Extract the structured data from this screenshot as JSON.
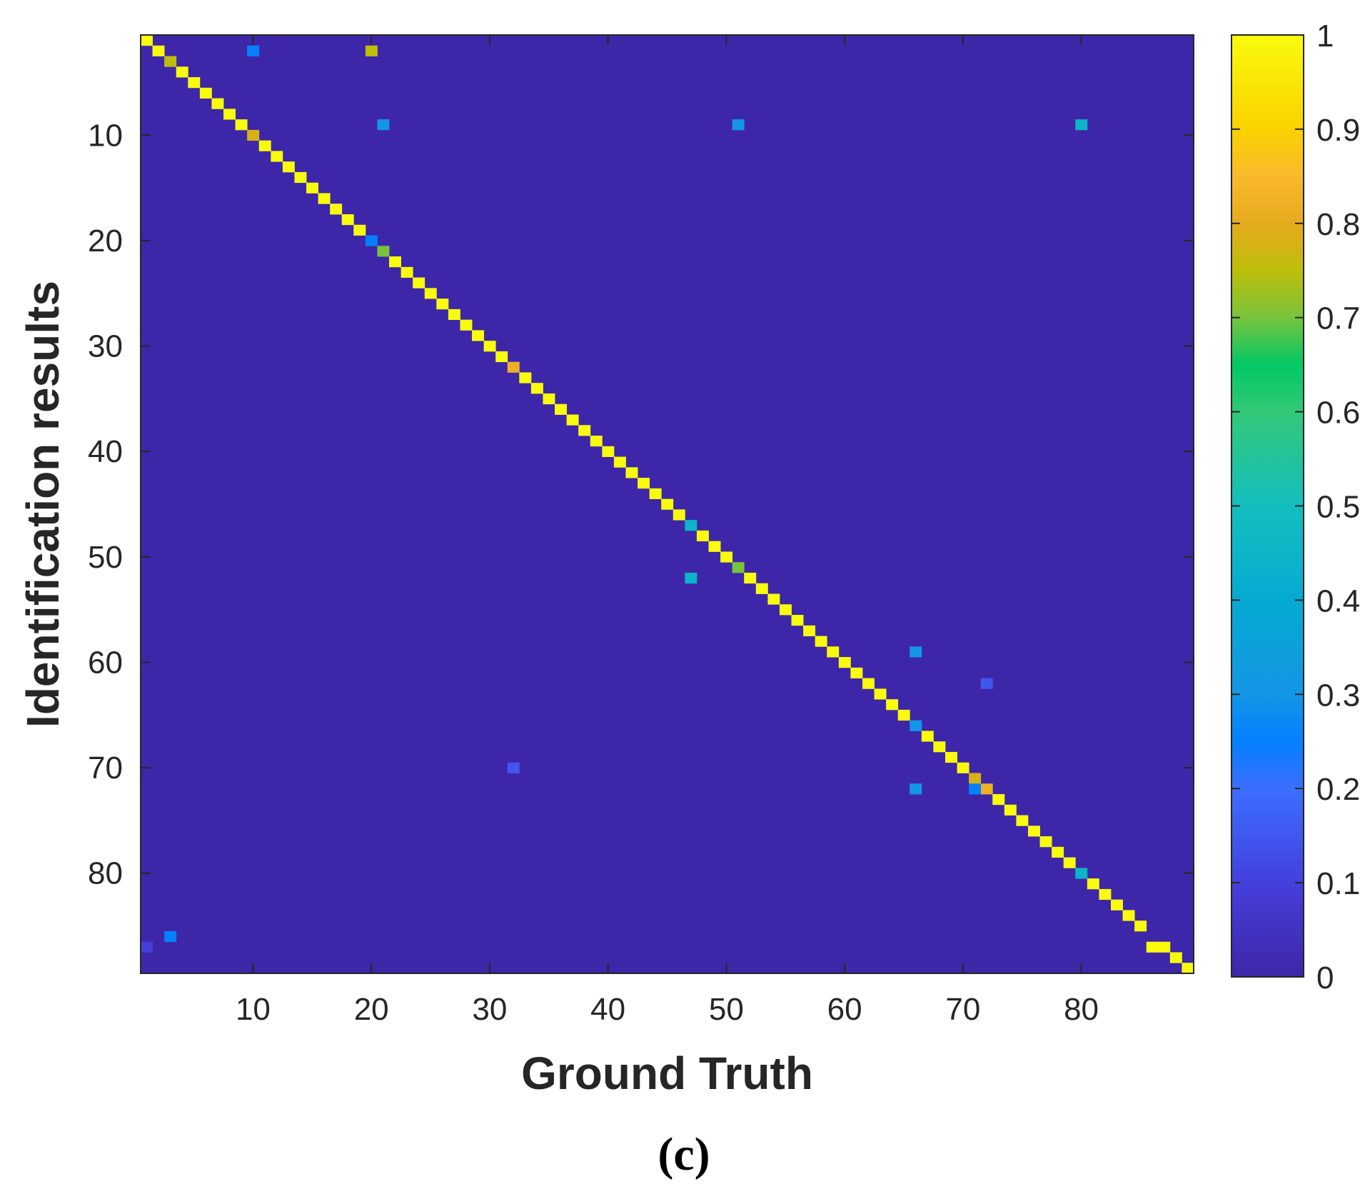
{
  "chart_data": {
    "type": "heatmap",
    "title": "",
    "xlabel": "Ground Truth",
    "ylabel": "Identification results",
    "panel_label": "(c)",
    "n": 89,
    "xlim": [
      0.5,
      89.5
    ],
    "ylim": [
      0.5,
      89.5
    ],
    "y_direction": "reversed",
    "background_value": 0.0,
    "x_ticks": [
      10,
      20,
      30,
      40,
      50,
      60,
      70,
      80
    ],
    "y_ticks": [
      10,
      20,
      30,
      40,
      50,
      60,
      70,
      80
    ],
    "colorbar": {
      "range": [
        0,
        1
      ],
      "ticks": [
        0,
        0.1,
        0.2,
        0.3,
        0.4,
        0.5,
        0.6,
        0.7,
        0.8,
        0.9,
        1
      ],
      "tick_labels": [
        "0",
        "0.1",
        "0.2",
        "0.3",
        "0.4",
        "0.5",
        "0.6",
        "0.7",
        "0.8",
        "0.9",
        "1"
      ],
      "colormap": "parula"
    },
    "diagonal_default": 1.0,
    "diagonal_exceptions": [
      {
        "index": 3,
        "value": 0.75
      },
      {
        "index": 10,
        "value": 0.78
      },
      {
        "index": 20,
        "value": 0.25
      },
      {
        "index": 21,
        "value": 0.7
      },
      {
        "index": 32,
        "value": 0.82
      },
      {
        "index": 47,
        "value": 0.45
      },
      {
        "index": 51,
        "value": 0.7
      },
      {
        "index": 66,
        "value": 0.3
      },
      {
        "index": 71,
        "value": 0.78
      },
      {
        "index": 72,
        "value": 0.82
      },
      {
        "index": 80,
        "value": 0.45
      },
      {
        "index": 86,
        "value": 0.0
      }
    ],
    "off_diagonal": [
      {
        "x": 10,
        "y": 2,
        "value": 0.25
      },
      {
        "x": 20,
        "y": 2,
        "value": 0.75
      },
      {
        "x": 21,
        "y": 9,
        "value": 0.3
      },
      {
        "x": 51,
        "y": 9,
        "value": 0.3
      },
      {
        "x": 80,
        "y": 9,
        "value": 0.45
      },
      {
        "x": 47,
        "y": 52,
        "value": 0.45
      },
      {
        "x": 66,
        "y": 59,
        "value": 0.3
      },
      {
        "x": 72,
        "y": 62,
        "value": 0.15
      },
      {
        "x": 32,
        "y": 70,
        "value": 0.15
      },
      {
        "x": 66,
        "y": 72,
        "value": 0.3
      },
      {
        "x": 71,
        "y": 72,
        "value": 0.25
      },
      {
        "x": 3,
        "y": 86,
        "value": 0.25
      },
      {
        "x": 1,
        "y": 87,
        "value": 0.1
      },
      {
        "x": 86,
        "y": 87,
        "value": 1.0
      }
    ],
    "grid": false,
    "legend": "none"
  }
}
